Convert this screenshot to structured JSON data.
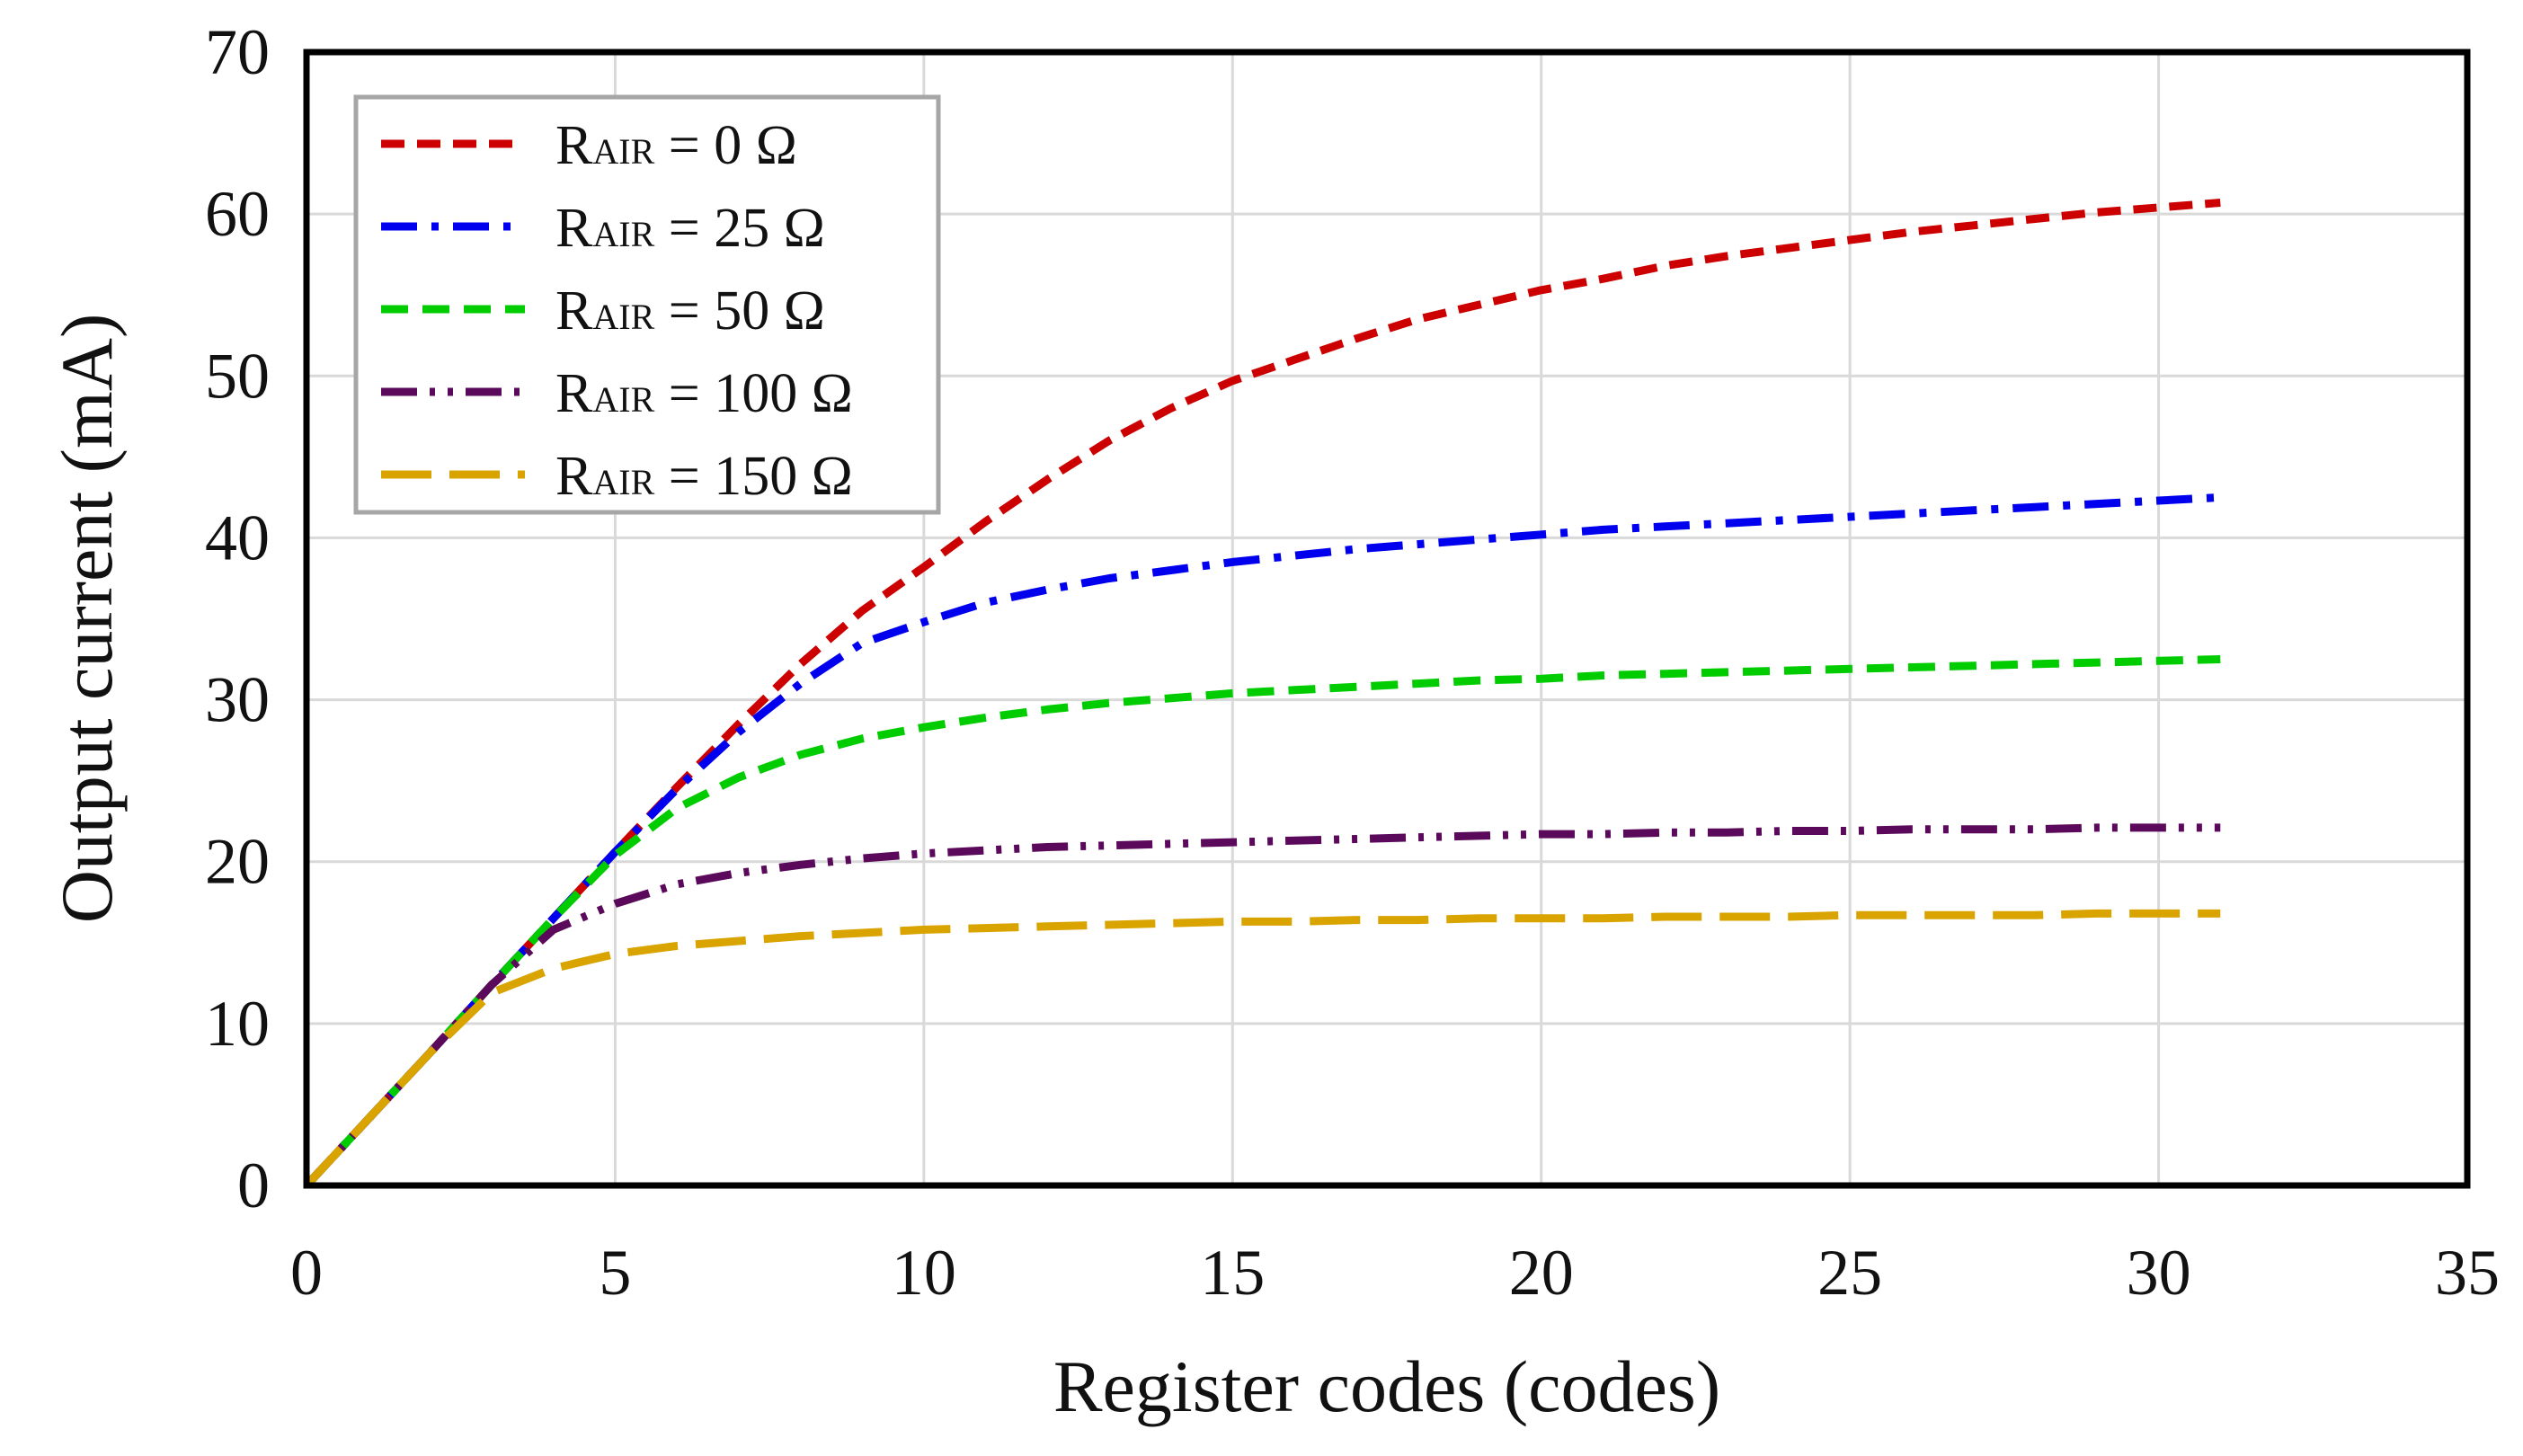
{
  "chart_data": {
    "type": "line",
    "title": "",
    "xlabel": "Register codes (codes)",
    "ylabel": "Output current (mA)",
    "xlim": [
      0,
      35
    ],
    "ylim": [
      0,
      70
    ],
    "xticks": [
      0,
      5,
      10,
      15,
      20,
      25,
      30,
      35
    ],
    "yticks": [
      0,
      10,
      20,
      30,
      40,
      50,
      60,
      70
    ],
    "grid": true,
    "legend_position": "top-left",
    "x": [
      0,
      1,
      2,
      3,
      4,
      5,
      6,
      7,
      8,
      9,
      10,
      11,
      12,
      13,
      14,
      15,
      16,
      17,
      18,
      19,
      20,
      21,
      22,
      23,
      24,
      25,
      26,
      27,
      28,
      29,
      30,
      31
    ],
    "series": [
      {
        "name_main": "R",
        "name_sub": "AIR",
        "name_rest": " = 0 Ω",
        "color": "#cc0000",
        "dash": "26 14",
        "values": [
          0,
          4.1,
          8.2,
          12.4,
          16.5,
          20.6,
          24.6,
          28.5,
          32.2,
          35.5,
          38.2,
          41.0,
          43.6,
          46.0,
          48.0,
          49.7,
          51.0,
          52.3,
          53.5,
          54.4,
          55.3,
          56.0,
          56.8,
          57.4,
          57.9,
          58.4,
          58.9,
          59.3,
          59.7,
          60.1,
          60.4,
          60.7
        ]
      },
      {
        "name_main": "R",
        "name_sub": "AIR",
        "name_rest": " = 25 Ω",
        "color": "#0000ee",
        "dash": "40 16 8 16",
        "values": [
          0,
          4.1,
          8.2,
          12.4,
          16.5,
          20.6,
          24.5,
          28.0,
          31.0,
          33.5,
          34.8,
          36.0,
          36.8,
          37.5,
          38.0,
          38.5,
          38.9,
          39.3,
          39.6,
          39.9,
          40.2,
          40.5,
          40.7,
          40.9,
          41.1,
          41.3,
          41.5,
          41.7,
          41.9,
          42.1,
          42.3,
          42.5
        ]
      },
      {
        "name_main": "R",
        "name_sub": "AIR",
        "name_rest": " = 50 Ω",
        "color": "#00cc00",
        "dash": "30 16",
        "values": [
          0,
          4.1,
          8.2,
          12.4,
          16.5,
          20.4,
          23.3,
          25.2,
          26.6,
          27.6,
          28.3,
          28.9,
          29.4,
          29.8,
          30.1,
          30.4,
          30.6,
          30.8,
          31.0,
          31.2,
          31.3,
          31.5,
          31.6,
          31.7,
          31.8,
          31.9,
          32.0,
          32.1,
          32.2,
          32.3,
          32.4,
          32.5
        ]
      },
      {
        "name_main": "R",
        "name_sub": "AIR",
        "name_rest": " = 100 Ω",
        "color": "#5b0a5b",
        "dash": "40 14 6 14 6 14",
        "values": [
          0,
          4.1,
          8.2,
          12.4,
          15.8,
          17.4,
          18.6,
          19.3,
          19.8,
          20.2,
          20.5,
          20.7,
          20.9,
          21.0,
          21.1,
          21.2,
          21.3,
          21.4,
          21.5,
          21.6,
          21.7,
          21.7,
          21.8,
          21.8,
          21.9,
          21.9,
          22.0,
          22.0,
          22.0,
          22.1,
          22.1,
          22.1
        ]
      },
      {
        "name_main": "R",
        "name_sub": "AIR",
        "name_rest": " = 150 Ω",
        "color": "#d9a300",
        "dash": "56 20",
        "values": [
          0,
          4.1,
          8.2,
          11.9,
          13.4,
          14.3,
          14.8,
          15.1,
          15.4,
          15.6,
          15.8,
          15.9,
          16.0,
          16.1,
          16.2,
          16.3,
          16.3,
          16.4,
          16.4,
          16.5,
          16.5,
          16.5,
          16.6,
          16.6,
          16.6,
          16.7,
          16.7,
          16.7,
          16.7,
          16.8,
          16.8,
          16.8
        ]
      }
    ]
  }
}
